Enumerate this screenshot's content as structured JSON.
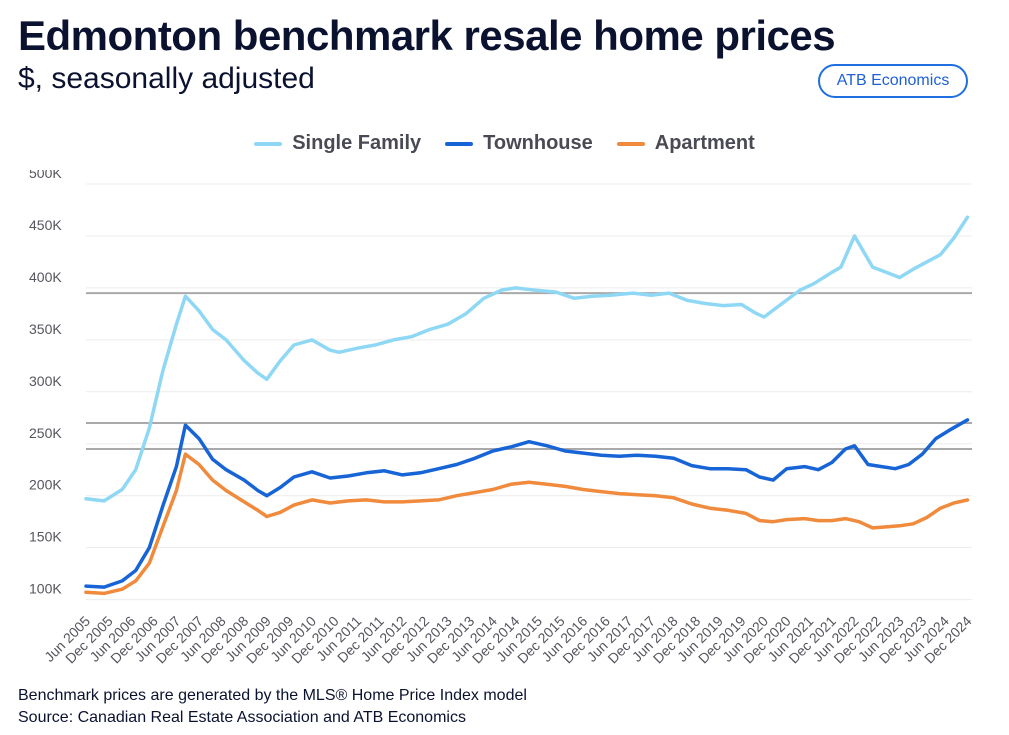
{
  "header": {
    "title": "Edmonton benchmark resale home prices",
    "subtitle": "$, seasonally adjusted",
    "brand": "ATB Economics"
  },
  "footnotes": {
    "note": "Benchmark prices are generated by the MLS® Home Price Index model",
    "source": "Source: Canadian Real Estate Association and ATB Economics"
  },
  "colors": {
    "single_family": "#8fd8f5",
    "townhouse": "#1764d6",
    "apartment": "#f08a3c",
    "reference_line": "#a9a9a9",
    "grid": "#ececec"
  },
  "chart_data": {
    "type": "line",
    "title": "Edmonton benchmark resale home prices",
    "subtitle": "$, seasonally adjusted",
    "ylim": [
      90000,
      500000
    ],
    "yticks": [
      100000,
      150000,
      200000,
      250000,
      300000,
      350000,
      400000,
      450000,
      500000
    ],
    "ytick_labels": [
      "100K",
      "150K",
      "200K",
      "250K",
      "300K",
      "350K",
      "400K",
      "450K",
      "500K"
    ],
    "xlim": [
      2005.4,
      2025.0
    ],
    "x_tick_labels": [
      "Jun 2005",
      "Dec 2005",
      "Jun 2006",
      "Dec 2006",
      "Jun 2007",
      "Dec 2007",
      "Jun 2008",
      "Dec 2008",
      "Jun 2009",
      "Dec 2009",
      "Jun 2010",
      "Dec 2010",
      "Jun 2011",
      "Dec 2011",
      "Jun 2012",
      "Dec 2012",
      "Jun 2013",
      "Dec 2013",
      "Jun 2014",
      "Dec 2014",
      "Jun 2015",
      "Dec 2015",
      "Jun 2016",
      "Dec 2016",
      "Jun 2017",
      "Dec 2017",
      "Jun 2018",
      "Dec 2018",
      "Jun 2019",
      "Dec 2019",
      "Jun 2020",
      "Dec 2020",
      "Jun 2021",
      "Dec 2021",
      "Jun 2022",
      "Dec 2022",
      "Jun 2023",
      "Dec 2023",
      "Jun 2024",
      "Dec 2024"
    ],
    "x_tick_values": [
      2005.4,
      2005.9,
      2006.4,
      2006.9,
      2007.4,
      2007.9,
      2008.4,
      2008.9,
      2009.4,
      2009.9,
      2010.4,
      2010.9,
      2011.4,
      2011.9,
      2012.4,
      2012.9,
      2013.4,
      2013.9,
      2014.4,
      2014.9,
      2015.4,
      2015.9,
      2016.4,
      2016.9,
      2017.4,
      2017.9,
      2018.4,
      2018.9,
      2019.4,
      2019.9,
      2020.4,
      2020.9,
      2021.4,
      2021.9,
      2022.4,
      2022.9,
      2023.4,
      2023.9,
      2024.4,
      2024.9
    ],
    "reference_lines": [
      395000,
      270000,
      245000
    ],
    "legend_position": "top-center",
    "series": [
      {
        "name": "Single Family",
        "x": [
          2005.4,
          2005.8,
          2006.2,
          2006.5,
          2006.8,
          2007.1,
          2007.4,
          2007.6,
          2007.9,
          2008.2,
          2008.5,
          2008.9,
          2009.2,
          2009.4,
          2009.7,
          2010.0,
          2010.4,
          2010.8,
          2011.0,
          2011.4,
          2011.8,
          2012.2,
          2012.6,
          2013.0,
          2013.4,
          2013.8,
          2014.2,
          2014.6,
          2014.9,
          2015.3,
          2015.8,
          2016.2,
          2016.6,
          2017.0,
          2017.5,
          2017.9,
          2018.3,
          2018.7,
          2019.1,
          2019.5,
          2019.9,
          2020.2,
          2020.4,
          2020.8,
          2021.2,
          2021.5,
          2021.9,
          2022.1,
          2022.4,
          2022.8,
          2023.1,
          2023.4,
          2023.7,
          2024.0,
          2024.3,
          2024.6,
          2024.9
        ],
        "values": [
          197000,
          195000,
          206000,
          225000,
          265000,
          320000,
          365000,
          392000,
          378000,
          360000,
          350000,
          330000,
          318000,
          312000,
          330000,
          345000,
          350000,
          340000,
          338000,
          342000,
          345000,
          350000,
          353000,
          360000,
          365000,
          375000,
          390000,
          398000,
          400000,
          398000,
          396000,
          390000,
          392000,
          393000,
          395000,
          393000,
          395000,
          388000,
          385000,
          383000,
          384000,
          376000,
          372000,
          385000,
          398000,
          404000,
          415000,
          420000,
          450000,
          420000,
          415000,
          410000,
          418000,
          425000,
          432000,
          448000,
          468000
        ]
      },
      {
        "name": "Townhouse",
        "x": [
          2005.4,
          2005.8,
          2006.2,
          2006.5,
          2006.8,
          2007.1,
          2007.4,
          2007.6,
          2007.9,
          2008.2,
          2008.5,
          2008.9,
          2009.2,
          2009.4,
          2009.7,
          2010.0,
          2010.4,
          2010.8,
          2011.2,
          2011.6,
          2012.0,
          2012.4,
          2012.8,
          2013.2,
          2013.6,
          2014.0,
          2014.4,
          2014.8,
          2015.2,
          2015.6,
          2016.0,
          2016.4,
          2016.8,
          2017.2,
          2017.6,
          2018.0,
          2018.4,
          2018.8,
          2019.2,
          2019.6,
          2020.0,
          2020.3,
          2020.6,
          2020.9,
          2021.3,
          2021.6,
          2021.9,
          2022.2,
          2022.4,
          2022.7,
          2023.0,
          2023.3,
          2023.6,
          2023.9,
          2024.2,
          2024.5,
          2024.9
        ],
        "values": [
          113000,
          112000,
          118000,
          128000,
          150000,
          190000,
          228000,
          268000,
          255000,
          235000,
          225000,
          215000,
          205000,
          200000,
          208000,
          218000,
          223000,
          217000,
          219000,
          222000,
          224000,
          220000,
          222000,
          226000,
          230000,
          236000,
          243000,
          247000,
          252000,
          248000,
          243000,
          241000,
          239000,
          238000,
          239000,
          238000,
          236000,
          229000,
          226000,
          226000,
          225000,
          218000,
          215000,
          226000,
          228000,
          225000,
          232000,
          245000,
          248000,
          230000,
          228000,
          226000,
          230000,
          240000,
          255000,
          263000,
          273000
        ]
      },
      {
        "name": "Apartment",
        "x": [
          2005.4,
          2005.8,
          2006.2,
          2006.5,
          2006.8,
          2007.1,
          2007.4,
          2007.6,
          2007.9,
          2008.2,
          2008.5,
          2008.9,
          2009.2,
          2009.4,
          2009.7,
          2010.0,
          2010.4,
          2010.8,
          2011.2,
          2011.6,
          2012.0,
          2012.4,
          2012.8,
          2013.2,
          2013.6,
          2014.0,
          2014.4,
          2014.8,
          2015.2,
          2015.6,
          2016.0,
          2016.4,
          2016.8,
          2017.2,
          2017.6,
          2018.0,
          2018.4,
          2018.8,
          2019.2,
          2019.6,
          2020.0,
          2020.3,
          2020.6,
          2020.9,
          2021.3,
          2021.6,
          2021.9,
          2022.2,
          2022.5,
          2022.8,
          2023.1,
          2023.4,
          2023.7,
          2024.0,
          2024.3,
          2024.6,
          2024.9
        ],
        "values": [
          107000,
          106000,
          110000,
          118000,
          135000,
          170000,
          205000,
          240000,
          230000,
          215000,
          205000,
          194000,
          186000,
          180000,
          184000,
          191000,
          196000,
          193000,
          195000,
          196000,
          194000,
          194000,
          195000,
          196000,
          200000,
          203000,
          206000,
          211000,
          213000,
          211000,
          209000,
          206000,
          204000,
          202000,
          201000,
          200000,
          198000,
          192000,
          188000,
          186000,
          183000,
          176000,
          175000,
          177000,
          178000,
          176000,
          176000,
          178000,
          175000,
          169000,
          170000,
          171000,
          173000,
          179000,
          188000,
          193000,
          196000
        ]
      }
    ]
  }
}
